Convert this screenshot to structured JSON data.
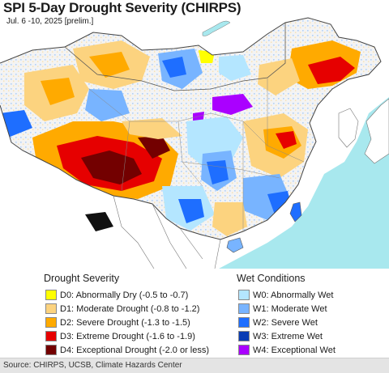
{
  "title": "SPI 5-Day Drought Severity (CHIRPS)",
  "subtitle": "Jul. 6 -10, 2025 [prelim.]",
  "legend": {
    "drought_heading": "Drought Severity",
    "wet_heading": "Wet Conditions",
    "drought_items": [
      {
        "label": "D0: Abnormally Dry (-0.5 to -0.7)",
        "color": "#ffff00"
      },
      {
        "label": "D1: Moderate Drought (-0.8 to -1.2)",
        "color": "#fcd37f"
      },
      {
        "label": "D2: Severe Drought (-1.3 to -1.5)",
        "color": "#ffaa00"
      },
      {
        "label": "D3: Extreme Drought (-1.6 to -1.9)",
        "color": "#e60000"
      },
      {
        "label": "D4: Exceptional Drought (-2.0 or less)",
        "color": "#730000"
      }
    ],
    "wet_items": [
      {
        "label": "W0: Abnormally Wet",
        "color": "#b4e6ff"
      },
      {
        "label": "W1: Moderate Wet",
        "color": "#78b4ff"
      },
      {
        "label": "W2: Severe Wet",
        "color": "#1e6eff"
      },
      {
        "label": "W3: Extreme Wet",
        "color": "#0a3cb4"
      },
      {
        "label": "W4: Exceptional Wet",
        "color": "#aa00ff"
      }
    ]
  },
  "source": "Source: CHIRPS, UCSB, Climate Hazards Center",
  "colors": {
    "water": "#a8e8ee",
    "land_outside": "#ffffff",
    "land_neutral": "#f3f3f3",
    "borders": "#555555"
  }
}
